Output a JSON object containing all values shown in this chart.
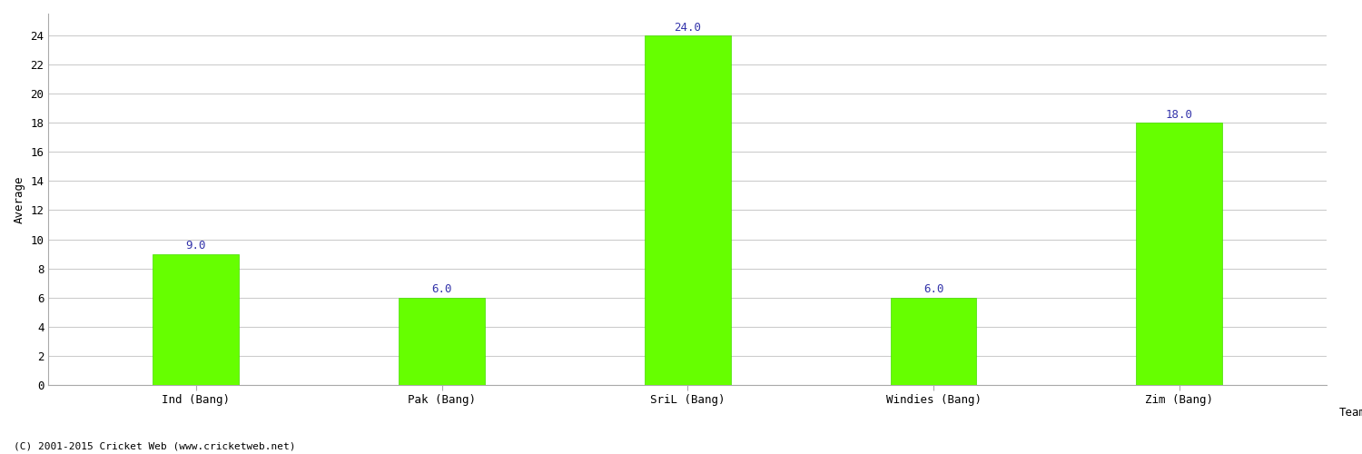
{
  "categories": [
    "Ind (Bang)",
    "Pak (Bang)",
    "SriL (Bang)",
    "Windies (Bang)",
    "Zim (Bang)"
  ],
  "values": [
    9.0,
    6.0,
    24.0,
    6.0,
    18.0
  ],
  "bar_color": "#66ff00",
  "bar_edge_color": "#44dd00",
  "ylabel": "Average",
  "xlabel": "Team",
  "ylim": [
    0,
    25.5
  ],
  "yticks": [
    0,
    2,
    4,
    6,
    8,
    10,
    12,
    14,
    16,
    18,
    20,
    22,
    24
  ],
  "label_color": "#3333aa",
  "label_fontsize": 9,
  "tick_fontsize": 9,
  "xlabel_fontsize": 9,
  "ylabel_fontsize": 9,
  "grid_color": "#cccccc",
  "background_color": "#ffffff",
  "footer_text": "(C) 2001-2015 Cricket Web (www.cricketweb.net)",
  "footer_fontsize": 8,
  "footer_color": "#000000",
  "bar_width": 0.35,
  "spine_color": "#aaaaaa"
}
